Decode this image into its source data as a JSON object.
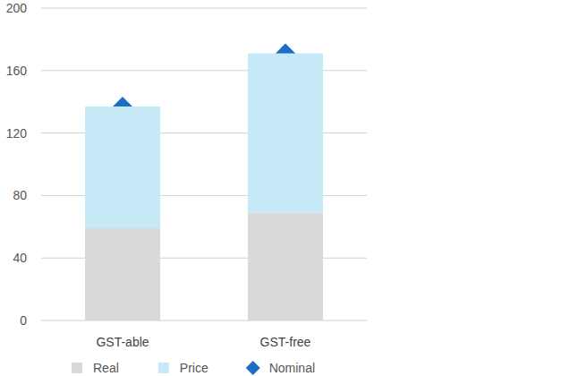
{
  "chart_data": {
    "type": "bar",
    "stacked": true,
    "grid": true,
    "legend": "bottom",
    "categories": [
      "GST-able",
      "GST-free"
    ],
    "series": [
      {
        "name": "Real",
        "color": "#d9d9d9",
        "values": [
          59,
          69
        ]
      },
      {
        "name": "Price",
        "color": "#c6e9f7",
        "values": [
          78,
          102
        ]
      },
      {
        "name": "Nominal",
        "type": "scatter",
        "marker": "diamond",
        "color": "#1b6ec2",
        "values": [
          137,
          171
        ]
      }
    ],
    "ylim": [
      0,
      200
    ],
    "yticks": [
      0,
      40,
      80,
      120,
      160,
      200
    ]
  }
}
